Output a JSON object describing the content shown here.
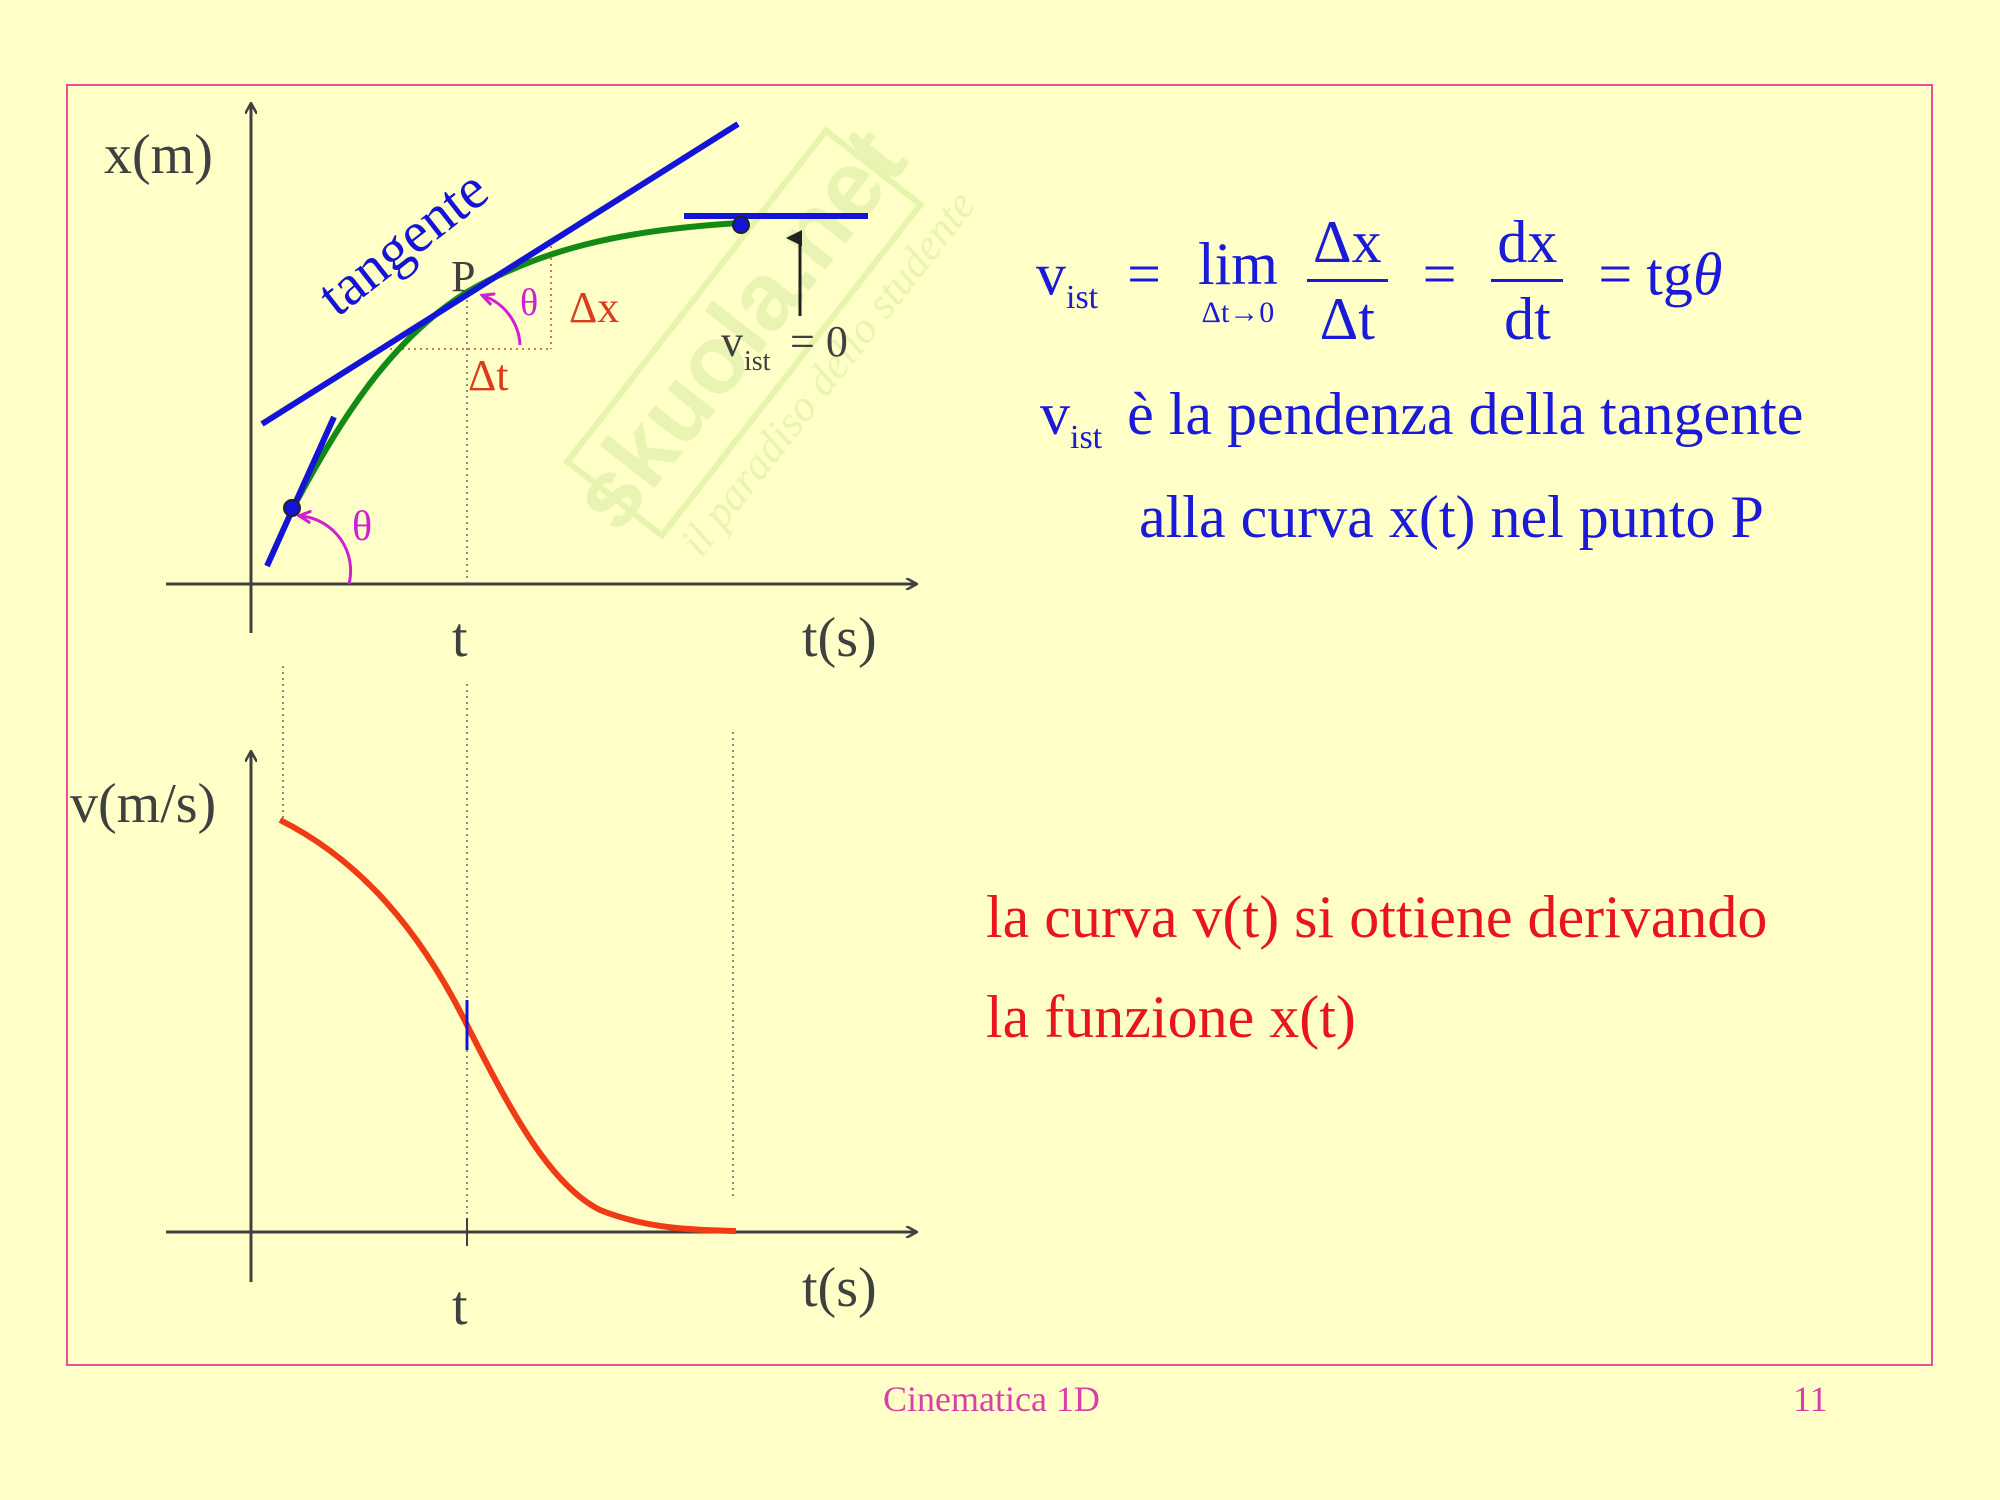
{
  "watermark": {
    "line1": "skuola.net",
    "line2": "il paradiso dello studente"
  },
  "top_graph": {
    "y_axis_label": "x(m)",
    "x_axis_label": "t(s)",
    "tick_label": "t",
    "tangent_label": "tangente",
    "point_label": "P",
    "theta_label": "θ",
    "dx_label": "Δx",
    "dt_label": "Δt",
    "vist_zero": {
      "v": "v",
      "sub": "ist",
      "rest": "= 0"
    },
    "colors": {
      "curve": "#138a13",
      "tangent": "#1414d8",
      "angle": "#d21ed2",
      "delta": "#dc3c1e",
      "axis": "#404040"
    }
  },
  "bottom_graph": {
    "y_axis_label": "v(m/s)",
    "x_axis_label": "t(s)",
    "tick_label": "t",
    "colors": {
      "curve": "#f03c14",
      "marker": "#1414d8"
    }
  },
  "formula": {
    "v": "v",
    "sub": "ist",
    "eq": "=",
    "lim": "lim",
    "lim_sub": "Δt→0",
    "frac1_num": "Δx",
    "frac1_den": "Δt",
    "frac2_num": "dx",
    "frac2_den": "dt",
    "tg": "tg",
    "theta": "θ"
  },
  "explanation": {
    "v": "v",
    "sub": "ist",
    "line1_rest": "è la pendenza della tangente",
    "line2": "alla curva  x(t)  nel punto P"
  },
  "derivation_note": {
    "line1": "la curva  v(t)  si ottiene derivando",
    "line2": "la funzione  x(t)"
  },
  "footer": {
    "title": "Cinematica 1D",
    "page": "11"
  }
}
